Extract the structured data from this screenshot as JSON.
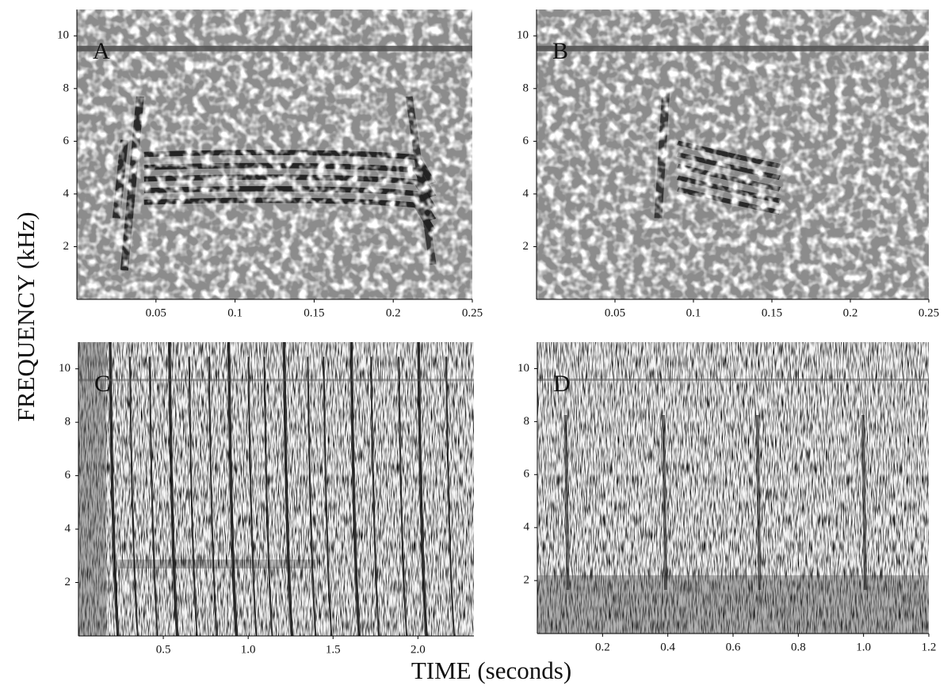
{
  "xlabel": "TIME (seconds)",
  "ylabel": "FREQUENCY (kHz)",
  "chart_data": [
    {
      "type": "spectrogram",
      "panel": "A",
      "xlim": [
        0,
        0.25
      ],
      "ylim": [
        0,
        11
      ],
      "xticks": [
        0.05,
        0.1,
        0.15,
        0.2,
        0.25
      ],
      "yticks": [
        2,
        4,
        6,
        8,
        10
      ]
    },
    {
      "type": "spectrogram",
      "panel": "B",
      "xlim": [
        0,
        0.25
      ],
      "ylim": [
        0,
        11
      ],
      "xticks": [
        0.05,
        0.1,
        0.15,
        0.2,
        0.25
      ],
      "yticks": [
        2,
        4,
        6,
        8,
        10
      ]
    },
    {
      "type": "spectrogram",
      "panel": "C",
      "xlim": [
        0,
        2.33
      ],
      "ylim": [
        0,
        11
      ],
      "xticks": [
        0.5,
        {
          "value": 1.0,
          "label": "1.0"
        },
        1.5,
        {
          "value": 2.0,
          "label": "2.0"
        }
      ],
      "yticks": [
        2,
        4,
        6,
        8,
        10
      ]
    },
    {
      "type": "spectrogram",
      "panel": "D",
      "xlim": [
        0,
        1.2
      ],
      "ylim": [
        0,
        11
      ],
      "xticks": [
        0.2,
        0.4,
        0.6,
        0.8,
        {
          "value": 1.0,
          "label": "1.0"
        },
        1.2
      ],
      "yticks": [
        2,
        4,
        6,
        8,
        10
      ]
    }
  ]
}
